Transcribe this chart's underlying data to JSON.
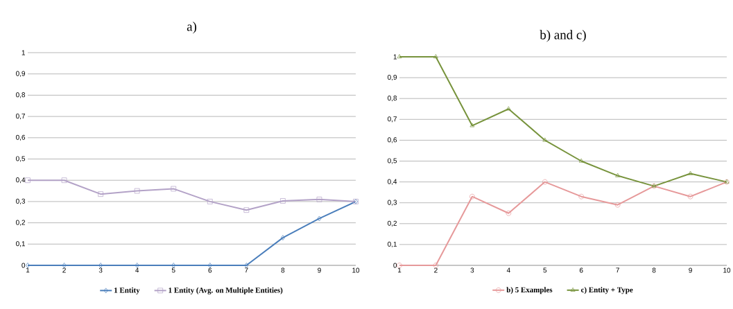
{
  "chart_data": [
    {
      "type": "line",
      "title": "a)",
      "categories": [
        "1",
        "2",
        "3",
        "4",
        "5",
        "6",
        "7",
        "8",
        "9",
        "10"
      ],
      "ylim": [
        0,
        1
      ],
      "yticks": [
        0,
        {
          "value": 0.1,
          "label": "0,1"
        },
        {
          "value": 0.2,
          "label": "0,2"
        },
        {
          "value": 0.3,
          "label": "0,3"
        },
        {
          "value": 0.4,
          "label": "0,4"
        },
        {
          "value": 0.5,
          "label": "0,5"
        },
        {
          "value": 0.6,
          "label": "0,6"
        },
        {
          "value": 0.7,
          "label": "0,7"
        },
        {
          "value": 0.8,
          "label": "0,8"
        },
        {
          "value": 0.9,
          "label": "0,9"
        },
        1
      ],
      "grid": "y",
      "legend": "bottom",
      "line_style": "solid",
      "series": [
        {
          "name": "1 Entity",
          "color": "#4a7ebb",
          "marker": "diamond",
          "values": [
            0,
            0,
            0,
            0,
            0,
            0,
            0,
            0.13,
            0.22,
            0.3
          ]
        },
        {
          "name": "1 Entity (Avg. on Multiple Entities)",
          "color": "#b3a2c7",
          "marker": "square",
          "values": [
            0.4,
            0.4,
            0.335,
            0.35,
            0.36,
            0.3,
            0.26,
            0.303,
            0.31,
            0.3
          ]
        }
      ]
    },
    {
      "type": "line",
      "title": "b) and c)",
      "categories": [
        "1",
        "2",
        "3",
        "4",
        "5",
        "6",
        "7",
        "8",
        "9",
        "10"
      ],
      "ylim": [
        0,
        1
      ],
      "yticks": [
        0,
        {
          "value": 0.1,
          "label": "0,1"
        },
        {
          "value": 0.2,
          "label": "0,2"
        },
        {
          "value": 0.3,
          "label": "0,3"
        },
        {
          "value": 0.4,
          "label": "0,4"
        },
        {
          "value": 0.5,
          "label": "0,5"
        },
        {
          "value": 0.6,
          "label": "0,6"
        },
        {
          "value": 0.7,
          "label": "0,7"
        },
        {
          "value": 0.8,
          "label": "0,8"
        },
        {
          "value": 0.9,
          "label": "0,9"
        },
        1
      ],
      "grid": "y",
      "legend": "bottom",
      "line_style": "solid",
      "series": [
        {
          "name": "b) 5 Examples",
          "color": "#e6999a",
          "marker": "circle",
          "values": [
            0,
            0,
            0.33,
            0.25,
            0.4,
            0.33,
            0.29,
            0.38,
            0.33,
            0.4
          ]
        },
        {
          "name": "c) Entity + Type",
          "color": "#77933c",
          "marker": "triangle",
          "values": [
            1,
            1,
            0.67,
            0.75,
            0.6,
            0.5,
            0.43,
            0.38,
            0.44,
            0.4
          ]
        }
      ]
    }
  ]
}
